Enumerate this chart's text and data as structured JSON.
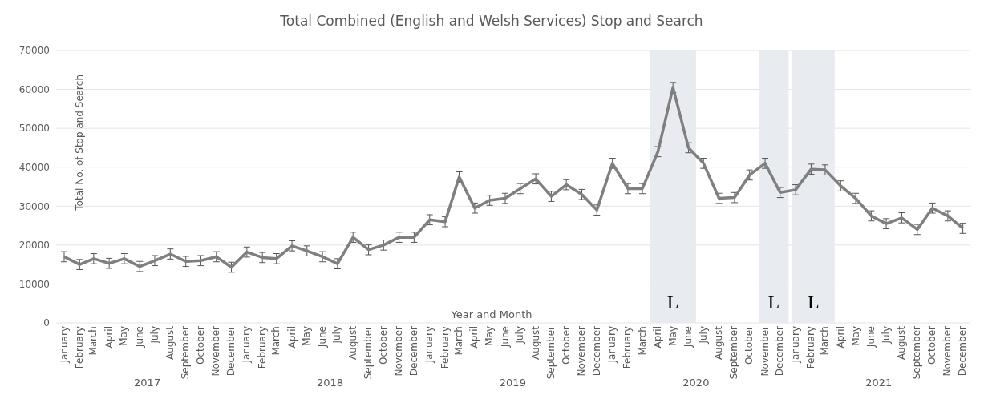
{
  "chart_data": {
    "type": "line",
    "title": "Total Combined (English and Welsh Services) Stop and Search",
    "xlabel": "Year and Month",
    "ylabel": "Total No. of Stop and Search",
    "x": [
      "2017-01",
      "2017-02",
      "2017-03",
      "2017-04",
      "2017-05",
      "2017-06",
      "2017-07",
      "2017-08",
      "2017-09",
      "2017-10",
      "2017-11",
      "2017-12",
      "2018-01",
      "2018-02",
      "2018-03",
      "2018-04",
      "2018-05",
      "2018-06",
      "2018-07",
      "2018-08",
      "2018-09",
      "2018-10",
      "2018-11",
      "2018-12",
      "2019-01",
      "2019-02",
      "2019-03",
      "2019-04",
      "2019-05",
      "2019-06",
      "2019-07",
      "2019-08",
      "2019-09",
      "2019-10",
      "2019-11",
      "2019-12",
      "2020-01",
      "2020-02",
      "2020-03",
      "2020-04",
      "2020-05",
      "2020-06",
      "2020-07",
      "2020-08",
      "2020-09",
      "2020-10",
      "2020-11",
      "2020-12",
      "2021-01",
      "2021-02",
      "2021-03",
      "2021-04",
      "2021-05",
      "2021-06",
      "2021-07",
      "2021-08",
      "2021-09",
      "2021-10",
      "2021-11",
      "2021-12"
    ],
    "xticks": [
      {
        "value": "2017-01",
        "label": "January"
      },
      {
        "value": "2017-02",
        "label": "February"
      },
      {
        "value": "2017-03",
        "label": "March"
      },
      {
        "value": "2017-04",
        "label": "April"
      },
      {
        "value": "2017-05",
        "label": "May"
      },
      {
        "value": "2017-06",
        "label": "June"
      },
      {
        "value": "2017-07",
        "label": "July"
      },
      {
        "value": "2017-08",
        "label": "August"
      },
      {
        "value": "2017-09",
        "label": "September"
      },
      {
        "value": "2017-10",
        "label": "October"
      },
      {
        "value": "2017-11",
        "label": "November"
      },
      {
        "value": "2017-12",
        "label": "December"
      },
      {
        "value": "2018-01",
        "label": "January"
      },
      {
        "value": "2018-02",
        "label": "February"
      },
      {
        "value": "2018-03",
        "label": "March"
      },
      {
        "value": "2018-04",
        "label": "April"
      },
      {
        "value": "2018-05",
        "label": "May"
      },
      {
        "value": "2018-06",
        "label": "June"
      },
      {
        "value": "2018-07",
        "label": "July"
      },
      {
        "value": "2018-08",
        "label": "August"
      },
      {
        "value": "2018-09",
        "label": "September"
      },
      {
        "value": "2018-10",
        "label": "October"
      },
      {
        "value": "2018-11",
        "label": "November"
      },
      {
        "value": "2018-12",
        "label": "December"
      },
      {
        "value": "2019-01",
        "label": "January"
      },
      {
        "value": "2019-02",
        "label": "February"
      },
      {
        "value": "2019-03",
        "label": "March"
      },
      {
        "value": "2019-04",
        "label": "April"
      },
      {
        "value": "2019-05",
        "label": "May"
      },
      {
        "value": "2019-06",
        "label": "June"
      },
      {
        "value": "2019-07",
        "label": "July"
      },
      {
        "value": "2019-08",
        "label": "August"
      },
      {
        "value": "2019-09",
        "label": "September"
      },
      {
        "value": "2019-10",
        "label": "October"
      },
      {
        "value": "2019-11",
        "label": "November"
      },
      {
        "value": "2019-12",
        "label": "December"
      },
      {
        "value": "2020-01",
        "label": "January"
      },
      {
        "value": "2020-02",
        "label": "February"
      },
      {
        "value": "2020-03",
        "label": "March"
      },
      {
        "value": "2020-04",
        "label": "April"
      },
      {
        "value": "2020-05",
        "label": "May"
      },
      {
        "value": "2020-06",
        "label": "June"
      },
      {
        "value": "2020-07",
        "label": "July"
      },
      {
        "value": "2020-08",
        "label": "August"
      },
      {
        "value": "2020-09",
        "label": "September"
      },
      {
        "value": "2020-10",
        "label": "October"
      },
      {
        "value": "2020-11",
        "label": "November"
      },
      {
        "value": "2020-12",
        "label": "December"
      },
      {
        "value": "2021-01",
        "label": "January"
      },
      {
        "value": "2021-02",
        "label": "February"
      },
      {
        "value": "2021-03",
        "label": "March"
      },
      {
        "value": "2021-04",
        "label": "April"
      },
      {
        "value": "2021-05",
        "label": "May"
      },
      {
        "value": "2021-06",
        "label": "June"
      },
      {
        "value": "2021-07",
        "label": "July"
      },
      {
        "value": "2021-08",
        "label": "August"
      },
      {
        "value": "2021-09",
        "label": "September"
      },
      {
        "value": "2021-10",
        "label": "October"
      },
      {
        "value": "2021-11",
        "label": "November"
      },
      {
        "value": "2021-12",
        "label": "December"
      }
    ],
    "xlim": [
      "2016-12-16",
      "2021-12-16"
    ],
    "x2lim": [
      "2016-12-16",
      "2021-12-16"
    ],
    "x2ticks": [
      {
        "value": "2017-06-16",
        "label": "2017"
      },
      {
        "value": "2018-06-16",
        "label": "2018"
      },
      {
        "value": "2019-06-16",
        "label": "2019"
      },
      {
        "value": "2020-06-16",
        "label": "2020"
      },
      {
        "value": "2021-06-16",
        "label": "2021"
      }
    ],
    "series": [
      {
        "color": "#7f7f7f",
        "values": [
          17000,
          15000,
          16500,
          15300,
          16500,
          14500,
          16000,
          17700,
          15800,
          16000,
          17000,
          14300,
          18200,
          16800,
          16500,
          19800,
          18500,
          17000,
          15200,
          22000,
          18800,
          20000,
          22000,
          22000,
          26500,
          26000,
          37500,
          29500,
          31500,
          32000,
          34500,
          37000,
          32500,
          35500,
          33000,
          29000,
          41000,
          34500,
          34500,
          44000,
          60500,
          45000,
          41000,
          32000,
          32200,
          38000,
          41000,
          33500,
          34200,
          39500,
          39300,
          35200,
          32000,
          27500,
          25500,
          27000,
          24000,
          29500,
          27500,
          24300
        ],
        "errors": [
          1300,
          1300,
          1300,
          1300,
          1300,
          1300,
          1300,
          1300,
          1300,
          1300,
          1300,
          1300,
          1300,
          1300,
          1300,
          1300,
          1300,
          1300,
          1300,
          1300,
          1300,
          1300,
          1300,
          1300,
          1300,
          1300,
          1300,
          1300,
          1300,
          1300,
          1300,
          1300,
          1300,
          1300,
          1300,
          1300,
          1300,
          1300,
          1300,
          1300,
          1300,
          1300,
          1300,
          1300,
          1300,
          1300,
          1300,
          1300,
          1300,
          1300,
          1300,
          1300,
          1300,
          1300,
          1300,
          1300,
          1300,
          1300,
          1300,
          1300
        ]
      }
    ],
    "ylim": [
      0,
      70000
    ],
    "yticks": [
      0,
      10000,
      20000,
      30000,
      40000,
      50000,
      60000,
      70000
    ],
    "grid": "y",
    "legend": false,
    "marker": "none",
    "line_style": "solid",
    "bands": [
      {
        "axis": "x",
        "from": "2020-03-16",
        "to": "2020-06-16",
        "label": "L",
        "color": "#e8ebf0"
      },
      {
        "axis": "x",
        "from": "2020-10-20",
        "to": "2020-12-18",
        "label": "L",
        "color": "#e8ebf0"
      },
      {
        "axis": "x",
        "from": "2020-12-25",
        "to": "2021-03-20",
        "label": "L",
        "color": "#e8ebf0"
      }
    ]
  }
}
